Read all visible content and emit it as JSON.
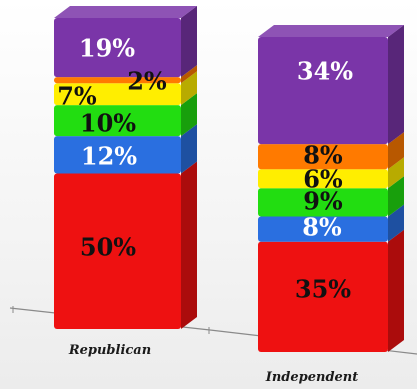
{
  "chart_data": {
    "type": "bar",
    "stacked": true,
    "categories": [
      "Republican",
      "Independent"
    ],
    "series": [
      {
        "color": "#ee1111",
        "values": [
          50,
          35
        ],
        "labels": [
          "50%",
          "35%"
        ],
        "label_color": "#111111"
      },
      {
        "color": "#2a6fe0",
        "values": [
          12,
          8
        ],
        "labels": [
          "12%",
          "8%"
        ],
        "label_color": "#ffffff"
      },
      {
        "color": "#22dd11",
        "values": [
          10,
          9
        ],
        "labels": [
          "10%",
          "9%"
        ],
        "label_color": "#111111"
      },
      {
        "color": "#ffee00",
        "values": [
          7,
          6
        ],
        "labels": [
          "7%",
          "6%"
        ],
        "label_color": "#111111"
      },
      {
        "color": "#ff7a00",
        "values": [
          2,
          8
        ],
        "labels": [
          "2%",
          "8%"
        ],
        "label_color": "#111111"
      },
      {
        "color": "#7a35a8",
        "values": [
          19,
          34
        ],
        "labels": [
          "19%",
          "34%"
        ],
        "label_color": "#ffffff"
      }
    ],
    "grid": false,
    "legend": "none"
  }
}
